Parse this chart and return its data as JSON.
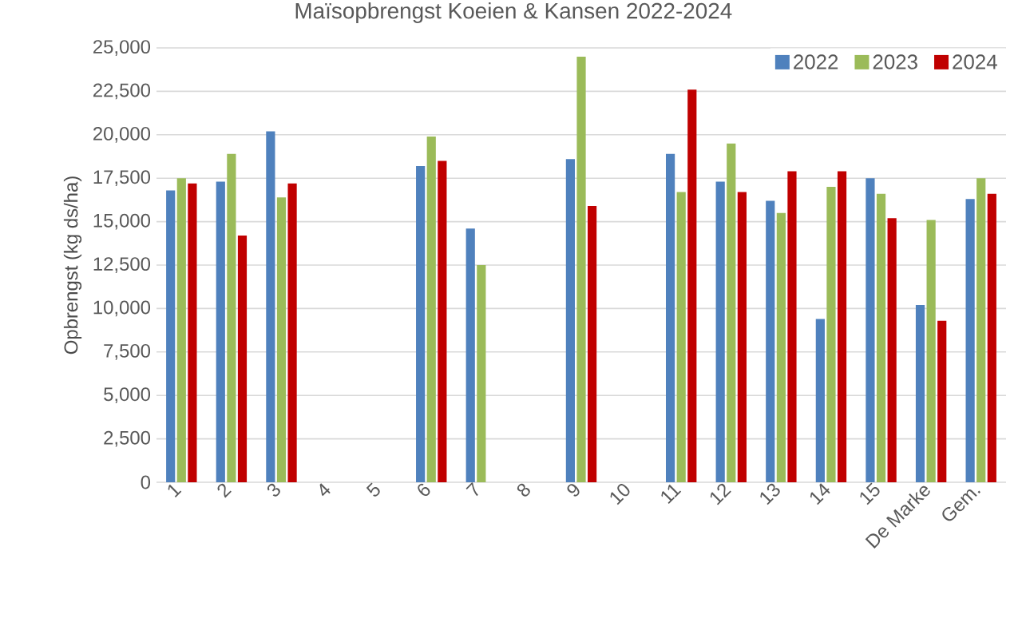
{
  "chart_data": {
    "type": "bar",
    "title": "Maïsopbrengst Koeien & Kansen 2022-2024",
    "ylabel": "Opbrengst (kg ds/ha)",
    "categories": [
      "1",
      "2",
      "3",
      "4",
      "5",
      "6",
      "7",
      "8",
      "9",
      "10",
      "11",
      "12",
      "13",
      "14",
      "15",
      "De Marke",
      "Gem."
    ],
    "series": [
      {
        "name": "2022",
        "color": "#4f81bd",
        "values": [
          16800,
          17300,
          20200,
          null,
          null,
          18200,
          14600,
          null,
          18600,
          null,
          18900,
          17300,
          16200,
          9400,
          17500,
          10200,
          16300
        ]
      },
      {
        "name": "2023",
        "color": "#9bbb59",
        "values": [
          17500,
          18900,
          16400,
          null,
          null,
          19900,
          12500,
          null,
          24500,
          null,
          16700,
          19500,
          15500,
          17000,
          16600,
          15100,
          17500
        ]
      },
      {
        "name": "2024",
        "color": "#c00000",
        "values": [
          17200,
          14200,
          17200,
          null,
          null,
          18500,
          null,
          null,
          15900,
          null,
          22600,
          16700,
          17900,
          17900,
          15200,
          9300,
          16600
        ]
      }
    ],
    "ylim": [
      0,
      25000
    ],
    "yticks": [
      0,
      {
        "value": 2500,
        "label": "2,500"
      },
      {
        "value": 5000,
        "label": "5,000"
      },
      {
        "value": 7500,
        "label": "7,500"
      },
      {
        "value": 10000,
        "label": "10,000"
      },
      {
        "value": 12500,
        "label": "12,500"
      },
      {
        "value": 15000,
        "label": "15,000"
      },
      {
        "value": 17500,
        "label": "17,500"
      },
      {
        "value": 20000,
        "label": "20,000"
      },
      {
        "value": 22500,
        "label": "22,500"
      },
      {
        "value": 25000,
        "label": "25,000"
      }
    ],
    "grid": "y",
    "legend": "top right"
  }
}
